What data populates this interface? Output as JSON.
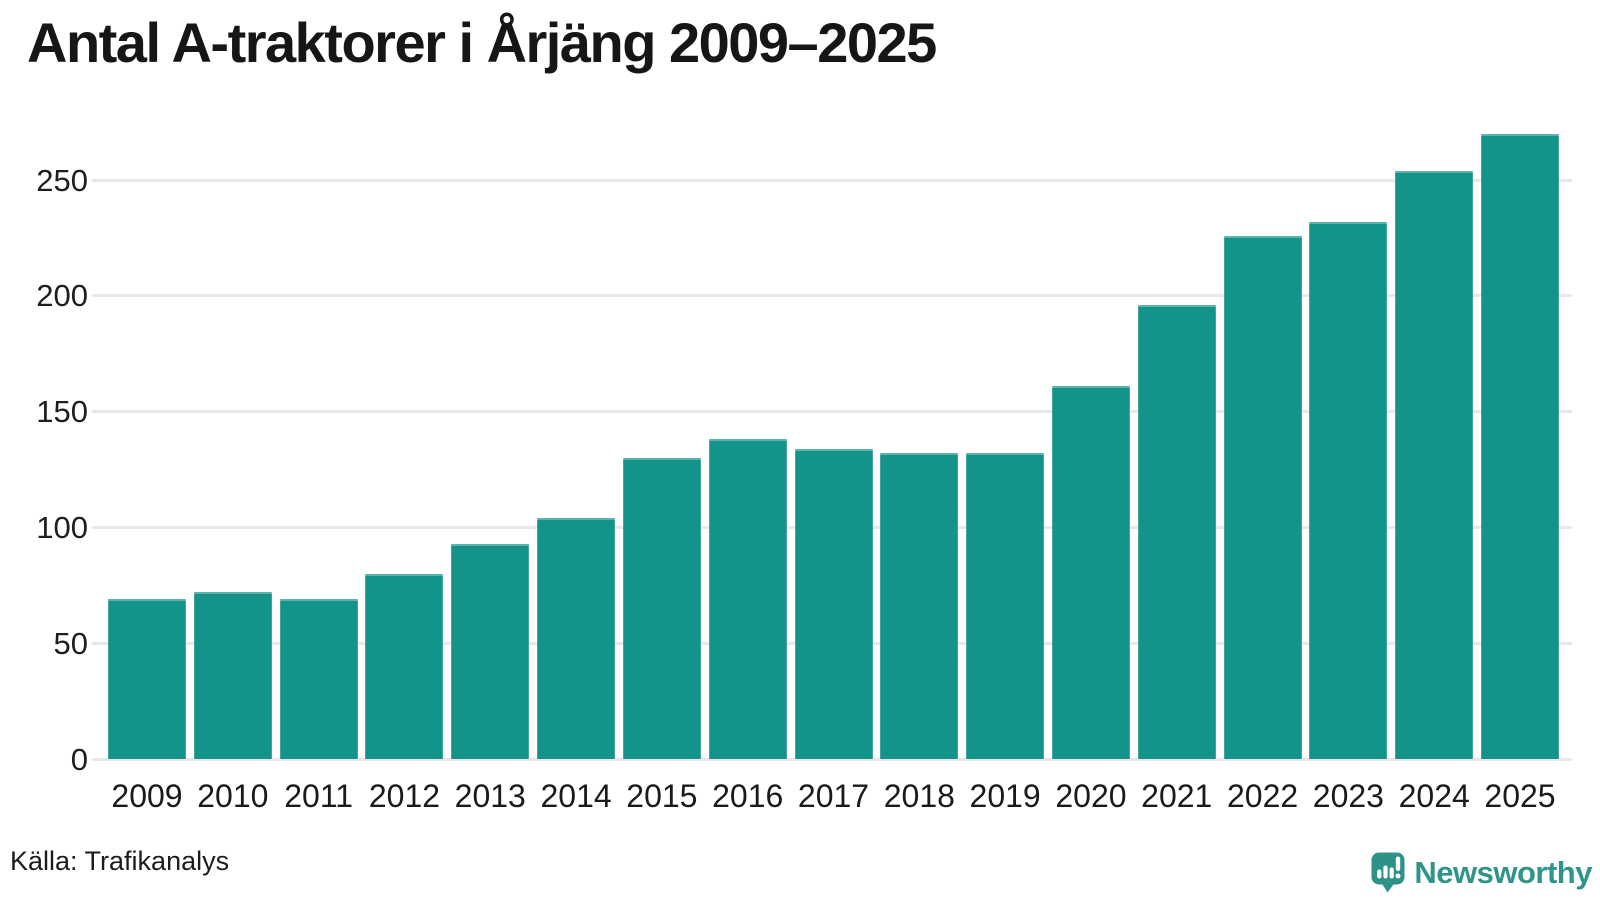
{
  "header": {
    "title": "Antal A-traktorer i Årjäng 2009–2025"
  },
  "footer": {
    "source": "Källa: Trafikanalys",
    "brand": {
      "name": "Newsworthy",
      "logo_icon": "speech-bubble-bar-chart-icon"
    }
  },
  "colors": {
    "bar": "#14938a",
    "grid": "#e8e8ec",
    "axis_text": "#1e1e1e",
    "title_text": "#161616",
    "brand_teal": "#2f958b"
  },
  "chart_data": {
    "type": "bar",
    "title": "Antal A-traktorer i Årjäng 2009–2025",
    "categories": [
      "2009",
      "2010",
      "2011",
      "2012",
      "2013",
      "2014",
      "2015",
      "2016",
      "2017",
      "2018",
      "2019",
      "2020",
      "2021",
      "2022",
      "2023",
      "2024",
      "2025"
    ],
    "values": [
      69,
      72,
      69,
      80,
      93,
      104,
      130,
      138,
      134,
      132,
      132,
      161,
      196,
      226,
      232,
      254,
      270
    ],
    "xlabel": "",
    "ylabel": "",
    "ylim": [
      0,
      278
    ],
    "yticks": [
      0,
      50,
      100,
      150,
      200,
      250
    ],
    "grid": "horizontal",
    "legend": "none",
    "bar_color": "#14938a",
    "source": "Källa: Trafikanalys"
  }
}
